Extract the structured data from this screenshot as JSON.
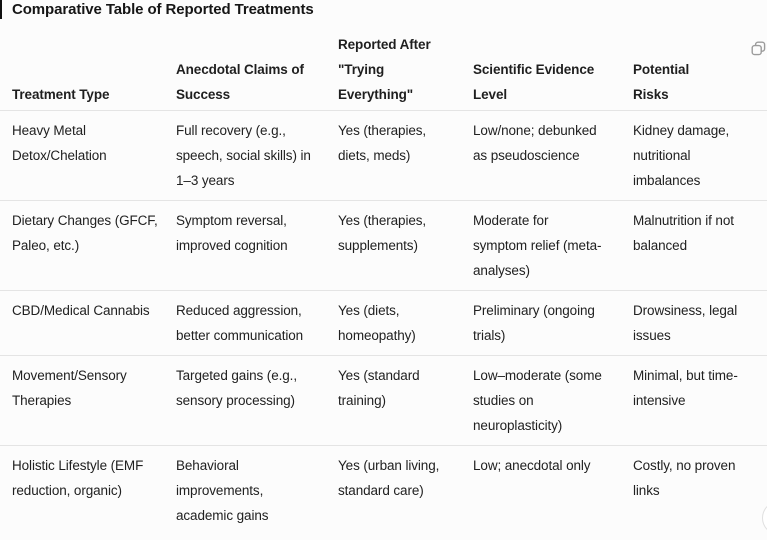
{
  "page": {
    "title": "Comparative Table of Reported Treatments"
  },
  "colors": {
    "background": "#fcfcfc",
    "text": "#202020",
    "divider": "#e4e4e4",
    "icon_gray": "#9b9b9b"
  },
  "toolbar": {
    "copy_icon": "copy-icon"
  },
  "table": {
    "headers": [
      "Treatment Type",
      "Anecdotal Claims of\nSuccess",
      "Reported After\n\"Trying\nEverything\"",
      "Scientific Evidence\nLevel",
      "Potential\nRisks"
    ],
    "rows": [
      [
        "Heavy Metal\nDetox/Chelation",
        "Full recovery (e.g.,\nspeech, social skills) in\n1–3 years",
        "Yes (therapies,\ndiets, meds)",
        "Low/none; debunked\nas pseudoscience",
        "Kidney damage,\nnutritional\nimbalances"
      ],
      [
        "Dietary Changes (GFCF,\nPaleo, etc.)",
        "Symptom reversal,\nimproved cognition",
        "Yes (therapies,\nsupplements)",
        "Moderate for\nsymptom relief (meta-\nanalyses)",
        "Malnutrition if not\nbalanced"
      ],
      [
        "CBD/Medical Cannabis",
        "Reduced aggression,\nbetter communication",
        "Yes (diets,\nhomeopathy)",
        "Preliminary (ongoing\ntrials)",
        "Drowsiness, legal\nissues"
      ],
      [
        "Movement/Sensory\nTherapies",
        "Targeted gains (e.g.,\nsensory processing)",
        "Yes (standard\ntraining)",
        "Low–moderate (some\nstudies on\nneuroplasticity)",
        "Minimal, but time-\nintensive"
      ],
      [
        "Holistic Lifestyle (EMF\nreduction, organic)",
        "Behavioral\nimprovements,\nacademic gains",
        "Yes (urban living,\nstandard care)",
        "Low; anecdotal only",
        "Costly, no proven\nlinks"
      ]
    ]
  }
}
